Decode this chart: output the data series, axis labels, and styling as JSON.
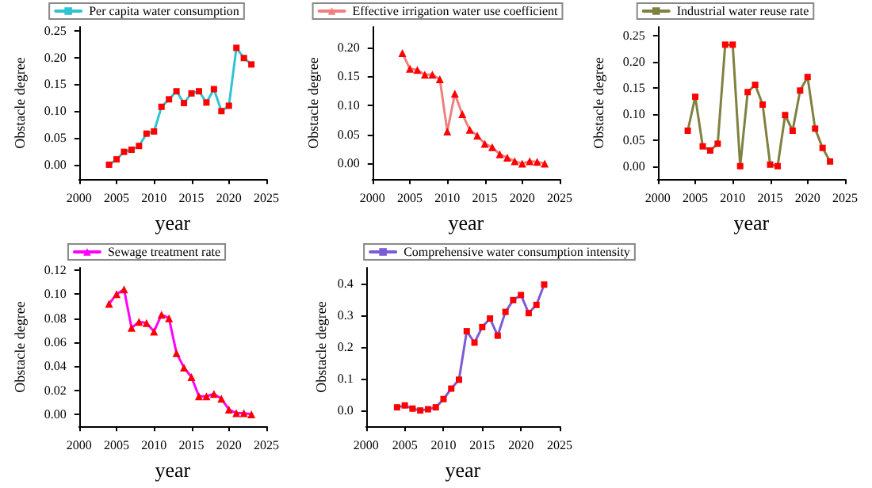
{
  "chart_data": [
    {
      "type": "line",
      "xlabel": "year",
      "ylabel": "Obstacle degree",
      "legend": "top",
      "grid": false,
      "marker": "square",
      "line_style": "solid",
      "x": [
        2004,
        2005,
        2006,
        2007,
        2008,
        2009,
        2010,
        2011,
        2012,
        2013,
        2014,
        2015,
        2016,
        2017,
        2018,
        2019,
        2020,
        2021,
        2022,
        2023
      ],
      "xlim": [
        2000,
        2025
      ],
      "xticks": [
        2000,
        2005,
        2010,
        2015,
        2020,
        2025
      ],
      "ylim": [
        -0.027,
        0.257
      ],
      "yticks": [
        {
          "value": 0,
          "label": "0.00"
        },
        {
          "value": 0.05,
          "label": "0.05"
        },
        {
          "value": 0.1,
          "label": "0.10"
        },
        {
          "value": 0.15,
          "label": "0.15"
        },
        {
          "value": 0.2,
          "label": "0.20"
        },
        {
          "value": 0.25,
          "label": "0.25"
        }
      ],
      "series": [
        {
          "name": "Per capita water consumption",
          "color": "#2ec4d4",
          "colors": [
            "#ff0000",
            "#ff0000",
            "#ff0000",
            "#ff0000",
            "#ff0000",
            "#ff0000",
            "#ff0000",
            "#ff0000",
            "#ff0000",
            "#ff0000",
            "#ff0000",
            "#ff0000",
            "#ff0000",
            "#ff0000",
            "#ff0000",
            "#ff0000",
            "#ff0000",
            "#ff0000",
            "#ff0000",
            "#ff0000"
          ],
          "values": [
            0,
            0.01,
            0.024,
            0.028,
            0.035,
            0.058,
            0.062,
            0.108,
            0.122,
            0.137,
            0.115,
            0.133,
            0.137,
            0.116,
            0.141,
            0.1,
            0.11,
            0.218,
            0.199,
            0.187
          ]
        }
      ]
    },
    {
      "type": "line",
      "xlabel": "year",
      "ylabel": "Obstacle degree",
      "legend": "top",
      "grid": false,
      "marker": "triangle",
      "line_style": "solid",
      "x": [
        2004,
        2005,
        2006,
        2007,
        2008,
        2009,
        2010,
        2011,
        2012,
        2013,
        2014,
        2015,
        2016,
        2017,
        2018,
        2019,
        2020,
        2021,
        2022,
        2023
      ],
      "xlim": [
        2000,
        2025
      ],
      "xticks": [
        2000,
        2005,
        2010,
        2015,
        2020,
        2025
      ],
      "ylim": [
        -0.027,
        0.235
      ],
      "yticks": [
        {
          "value": 0,
          "label": "0.00"
        },
        {
          "value": 0.05,
          "label": "0.05"
        },
        {
          "value": 0.1,
          "label": "0.10"
        },
        {
          "value": 0.15,
          "label": "0.15"
        },
        {
          "value": 0.2,
          "label": "0.20"
        }
      ],
      "series": [
        {
          "name": "Effective irrigation water use coefficient",
          "color": "#f08080",
          "colors": [
            "#ff0000",
            "#ff0000",
            "#ff0000",
            "#ff0000",
            "#ff0000",
            "#ff0000",
            "#ff0000",
            "#ff0000",
            "#ff0000",
            "#ff0000",
            "#ff0000",
            "#ff0000",
            "#ff0000",
            "#ff0000",
            "#ff0000",
            "#ff0000",
            "#ff0000",
            "#ff0000",
            "#ff0000",
            "#ff0000"
          ],
          "values": [
            0.19,
            0.163,
            0.161,
            0.153,
            0.153,
            0.145,
            0.055,
            0.12,
            0.085,
            0.058,
            0.048,
            0.034,
            0.028,
            0.016,
            0.01,
            0.004,
            0,
            0.004,
            0.003,
            0
          ]
        }
      ]
    },
    {
      "type": "line",
      "xlabel": "year",
      "ylabel": "Obstacle degree",
      "legend": "top",
      "grid": false,
      "marker": "square",
      "line_style": "solid",
      "x": [
        2004,
        2005,
        2006,
        2007,
        2008,
        2009,
        2010,
        2011,
        2012,
        2013,
        2014,
        2015,
        2016,
        2017,
        2018,
        2019,
        2020,
        2021,
        2022,
        2023
      ],
      "xlim": [
        2000,
        2025
      ],
      "xticks": [
        2000,
        2005,
        2010,
        2015,
        2020,
        2025
      ],
      "ylim": [
        -0.025,
        0.267
      ],
      "yticks": [
        {
          "value": 0,
          "label": "0.00"
        },
        {
          "value": 0.05,
          "label": "0.05"
        },
        {
          "value": 0.1,
          "label": "0.10"
        },
        {
          "value": 0.15,
          "label": "0.15"
        },
        {
          "value": 0.2,
          "label": "0.20"
        },
        {
          "value": 0.25,
          "label": "0.25"
        }
      ],
      "series": [
        {
          "name": "Industrial water reuse rate",
          "color": "#808040",
          "colors": [
            "#ff0000",
            "#ff0000",
            "#ff0000",
            "#ff0000",
            "#ff0000",
            "#ff0000",
            "#ff0000",
            "#ff0000",
            "#ff0000",
            "#ff0000",
            "#ff0000",
            "#ff0000",
            "#ff0000",
            "#ff0000",
            "#ff0000",
            "#ff0000",
            "#ff0000",
            "#ff0000",
            "#ff0000",
            "#ff0000"
          ],
          "values": [
            0.068,
            0.133,
            0.038,
            0.03,
            0.043,
            0.233,
            0.233,
            0,
            0.142,
            0.156,
            0.118,
            0.003,
            0,
            0.098,
            0.068,
            0.145,
            0.171,
            0.072,
            0.035,
            0.009
          ]
        }
      ]
    },
    {
      "type": "line",
      "xlabel": "year",
      "ylabel": "Obstacle degree",
      "legend": "top",
      "grid": false,
      "marker": "triangle",
      "line_style": "solid",
      "x": [
        2004,
        2005,
        2006,
        2007,
        2008,
        2009,
        2010,
        2011,
        2012,
        2013,
        2014,
        2015,
        2016,
        2017,
        2018,
        2019,
        2020,
        2021,
        2022,
        2023
      ],
      "xlim": [
        2000,
        2025
      ],
      "xticks": [
        2000,
        2005,
        2010,
        2015,
        2020,
        2025
      ],
      "ylim": [
        -0.01,
        0.122
      ],
      "yticks": [
        {
          "value": 0,
          "label": "0.00"
        },
        {
          "value": 0.02,
          "label": "0.02"
        },
        {
          "value": 0.04,
          "label": "0.04"
        },
        {
          "value": 0.06,
          "label": "0.06"
        },
        {
          "value": 0.08,
          "label": "0.08"
        },
        {
          "value": 0.1,
          "label": "0.10"
        },
        {
          "value": 0.12,
          "label": "0.12"
        }
      ],
      "series": [
        {
          "name": "Sewage treatment rate",
          "color": "#ff00ff",
          "colors": [
            "#ff0000",
            "#ff0000",
            "#ff0000",
            "#ff0000",
            "#ff0000",
            "#ff0000",
            "#ff0000",
            "#ff0000",
            "#ff0000",
            "#ff0000",
            "#ff0000",
            "#ff0000",
            "#ff0000",
            "#ff0000",
            "#ff0000",
            "#ff0000",
            "#ff0000",
            "#ff0000",
            "#ff0000",
            "#ff0000"
          ],
          "values": [
            0.092,
            0.1,
            0.104,
            0.072,
            0.077,
            0.076,
            0.069,
            0.083,
            0.08,
            0.051,
            0.039,
            0.031,
            0.015,
            0.015,
            0.017,
            0.013,
            0.004,
            0.001,
            0.001,
            0
          ]
        }
      ]
    },
    {
      "type": "line",
      "xlabel": "year",
      "ylabel": "Obstacle degree",
      "legend": "top",
      "grid": false,
      "marker": "square",
      "line_style": "solid",
      "x": [
        2004,
        2005,
        2006,
        2007,
        2008,
        2009,
        2010,
        2011,
        2012,
        2013,
        2014,
        2015,
        2016,
        2017,
        2018,
        2019,
        2020,
        2021,
        2022,
        2023
      ],
      "xlim": [
        2000,
        2025
      ],
      "xticks": [
        2000,
        2005,
        2010,
        2015,
        2020,
        2025
      ],
      "ylim": [
        -0.05,
        0.45
      ],
      "yticks": [
        {
          "value": 0,
          "label": "0.0"
        },
        {
          "value": 0.1,
          "label": "0.1"
        },
        {
          "value": 0.2,
          "label": "0.2"
        },
        {
          "value": 0.3,
          "label": "0.3"
        },
        {
          "value": 0.4,
          "label": "0.4"
        }
      ],
      "series": [
        {
          "name": "Comprehensive water consumption intensity",
          "color": "#7b5bd6",
          "colors": [
            "#ff0000",
            "#ff0000",
            "#ff0000",
            "#ff0000",
            "#ff0000",
            "#ff0000",
            "#ff0000",
            "#ff0000",
            "#ff0000",
            "#ff0000",
            "#ff0000",
            "#ff0000",
            "#ff0000",
            "#ff0000",
            "#ff0000",
            "#ff0000",
            "#ff0000",
            "#ff0000",
            "#ff0000",
            "#ff0000"
          ],
          "values": [
            0.01,
            0.016,
            0.006,
            0,
            0.004,
            0.01,
            0.036,
            0.069,
            0.097,
            0.25,
            0.214,
            0.263,
            0.29,
            0.236,
            0.311,
            0.348,
            0.364,
            0.307,
            0.333,
            0.397
          ]
        }
      ]
    }
  ]
}
